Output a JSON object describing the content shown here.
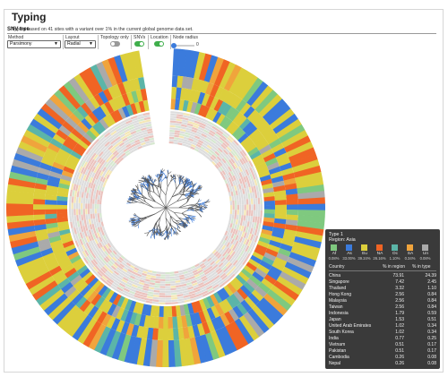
{
  "panel": {
    "title": "Typing",
    "subtitle": "Typing based on 41 sites with a variant over 1% in the current global genome data set.",
    "section_title": "SNV tree"
  },
  "controls": {
    "method_label": "Method",
    "method_value": "Parsimony",
    "layout_label": "Layout",
    "layout_value": "Radial",
    "topology_label": "Topology only",
    "topology_on": false,
    "snvs_label": "SNVs",
    "snvs_on": true,
    "location_label": "Location",
    "location_on": true,
    "radius_label": "Node radius",
    "radius_value": "0",
    "radius_fraction": 0.0
  },
  "colors": {
    "Af": "#7fc97f",
    "As": "#3b7bdc",
    "Eu": "#dccf3c",
    "NA": "#f06424",
    "Oc": "#5bb5a8",
    "SA": "#f0a43c",
    "Un": "#aaaaaa",
    "legend_bg": "#3a3a3a",
    "toggle_on": "#3fae4b"
  },
  "legend": {
    "type_label": "Type 1",
    "region_label": "Region: Asia",
    "regions": [
      {
        "code": "Af",
        "pct": "0.08%",
        "color": "#7fc97f"
      },
      {
        "code": "As",
        "pct": "33.00%",
        "color": "#3b7bdc"
      },
      {
        "code": "Eu",
        "pct": "39.24%",
        "color": "#dccf3c"
      },
      {
        "code": "NA",
        "pct": "26.16%",
        "color": "#f06424"
      },
      {
        "code": "Oc",
        "pct": "1.10%",
        "color": "#5bb5a8"
      },
      {
        "code": "SA",
        "pct": "0.34%",
        "color": "#f0a43c"
      },
      {
        "code": "Un",
        "pct": "0.08%",
        "color": "#aaaaaa"
      }
    ],
    "col_country": "Country",
    "col_region": "% in region",
    "col_type": "% in type",
    "rows": [
      {
        "country": "China",
        "region": "73.91",
        "type": "24.39"
      },
      {
        "country": "Singapore",
        "region": "7.42",
        "type": "2.45"
      },
      {
        "country": "Thailand",
        "region": "3.32",
        "type": "1.10"
      },
      {
        "country": "Hong Kong",
        "region": "2.56",
        "type": "0.84"
      },
      {
        "country": "Malaysia",
        "region": "2.56",
        "type": "0.84"
      },
      {
        "country": "Taiwan",
        "region": "2.56",
        "type": "0.84"
      },
      {
        "country": "Indonesia",
        "region": "1.79",
        "type": "0.59"
      },
      {
        "country": "Japan",
        "region": "1.53",
        "type": "0.51"
      },
      {
        "country": "United Arab Emirates",
        "region": "1.02",
        "type": "0.34"
      },
      {
        "country": "South Korea",
        "region": "1.02",
        "type": "0.34"
      },
      {
        "country": "India",
        "region": "0.77",
        "type": "0.25"
      },
      {
        "country": "Vietnam",
        "region": "0.51",
        "type": "0.17"
      },
      {
        "country": "Pakistan",
        "region": "0.51",
        "type": "0.17"
      },
      {
        "country": "Cambodia",
        "region": "0.26",
        "type": "0.08"
      },
      {
        "country": "Nepal",
        "region": "0.26",
        "type": "0.08"
      }
    ]
  }
}
